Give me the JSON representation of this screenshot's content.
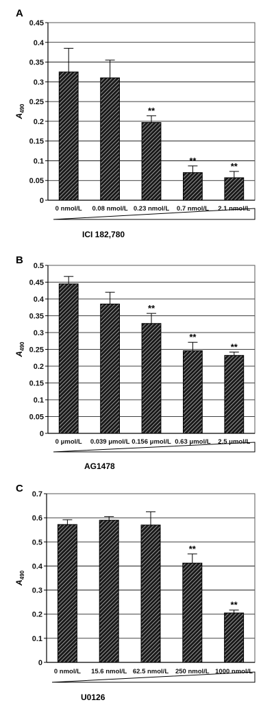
{
  "chart_data": [
    {
      "panel": "A",
      "type": "bar",
      "ylabel": "A",
      "ylabel_sub": "490",
      "ylim": [
        0,
        0.45
      ],
      "yticks": [
        "0",
        "0.05",
        "0.1",
        "0.15",
        "0.2",
        "0.25",
        "0.3",
        "0.35",
        "0.4",
        "0.45"
      ],
      "categories": [
        "0 nmol/L",
        "0.08 nmol/L",
        "0.23 nmol/L",
        "0.7 nmol/L",
        "2.1 nmol/L"
      ],
      "values": [
        0.325,
        0.31,
        0.197,
        0.07,
        0.057
      ],
      "errors": [
        0.06,
        0.045,
        0.017,
        0.017,
        0.016
      ],
      "significance": [
        "",
        "",
        "**",
        "**",
        "**"
      ],
      "treatment": "ICI 182,780",
      "grid": true
    },
    {
      "panel": "B",
      "type": "bar",
      "ylabel": "A",
      "ylabel_sub": "490",
      "ylim": [
        0,
        0.5
      ],
      "yticks": [
        "0",
        "0.05",
        "0.1",
        "0.15",
        "0.2",
        "0.25",
        "0.3",
        "0.35",
        "0.4",
        "0.45",
        "0.5"
      ],
      "categories": [
        "0 μmol/L",
        "0.039 μmol/L",
        "0.156 μmol/L",
        "0.63 μmol/L",
        "2.5 μmol/L"
      ],
      "values": [
        0.445,
        0.385,
        0.327,
        0.246,
        0.232
      ],
      "errors": [
        0.022,
        0.035,
        0.03,
        0.025,
        0.01
      ],
      "significance": [
        "",
        "",
        "**",
        "**",
        "**"
      ],
      "treatment": "AG1478",
      "grid": true
    },
    {
      "panel": "C",
      "type": "bar",
      "ylabel": "A",
      "ylabel_sub": "490",
      "ylim": [
        0,
        0.7
      ],
      "yticks": [
        "0",
        "0.1",
        "0.2",
        "0.3",
        "0.4",
        "0.5",
        "0.6",
        "0.7"
      ],
      "categories": [
        "0 nmol/L",
        "15.6 nmol/L",
        "62.5 nmol/L",
        "250 nmol/L",
        "1000 nmol/L"
      ],
      "values": [
        0.572,
        0.59,
        0.57,
        0.412,
        0.205
      ],
      "errors": [
        0.02,
        0.015,
        0.055,
        0.038,
        0.012
      ],
      "significance": [
        "",
        "",
        "",
        "**",
        "**"
      ],
      "treatment": "U0126",
      "grid": true
    }
  ]
}
